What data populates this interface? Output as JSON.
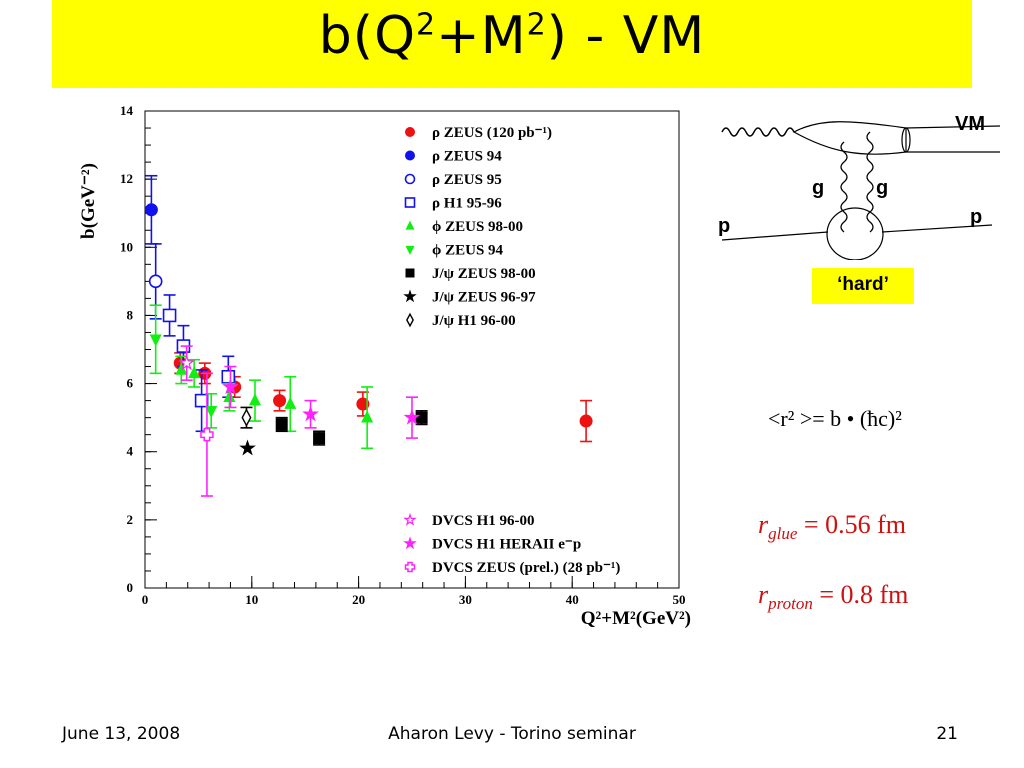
{
  "slide": {
    "title_main": "b(Q",
    "title_sup1": "2",
    "title_plus": "+M",
    "title_sup2": "2",
    "title_end": ") - VM",
    "hard_label": "‘hard’",
    "formula_r2": "<r² >= b • (ħc)²",
    "r_glue_sym": "r",
    "r_glue_sub": "glue",
    "r_glue_val": " = 0.56 fm",
    "r_proton_sym": "r",
    "r_proton_sub": "proton",
    "r_proton_val": " = 0.8 fm",
    "footer_date": "June 13, 2008",
    "footer_center": "Aharon Levy - Torino seminar",
    "footer_page": "21"
  },
  "diagram": {
    "vm_label": "VM",
    "g_label_left": "g",
    "g_label_right": "g",
    "p_label_left": "p",
    "p_label_right": "p"
  },
  "colors": {
    "red": "#ee1111",
    "blue": "#1111ee",
    "green": "#11ee11",
    "black": "#000000",
    "magenta": "#ff22ff",
    "yellow": "#ffff00"
  },
  "chart_data": {
    "type": "scatter",
    "xlabel": "Q²+M²(GeV²)",
    "ylabel": "b(GeV⁻²)",
    "xlim": [
      0,
      50
    ],
    "ylim": [
      0,
      14
    ],
    "xticks": [
      0,
      10,
      20,
      30,
      40,
      50
    ],
    "yticks": [
      0,
      2,
      4,
      6,
      8,
      10,
      12,
      14
    ],
    "series": [
      {
        "name": "ρ ZEUS (120 pb⁻¹)",
        "marker": "circle-filled",
        "color": "#ee1111",
        "points": [
          [
            3.3,
            6.6,
            0.3
          ],
          [
            5.6,
            6.3,
            0.3
          ],
          [
            8.4,
            5.9,
            0.3
          ],
          [
            12.6,
            5.5,
            0.3
          ],
          [
            20.4,
            5.4,
            0.35
          ],
          [
            41.3,
            4.9,
            0.6
          ]
        ]
      },
      {
        "name": "ρ ZEUS 94",
        "marker": "circle-filled",
        "color": "#1111ee",
        "points": [
          [
            0.6,
            11.1,
            1.0
          ]
        ]
      },
      {
        "name": "ρ ZEUS 95",
        "marker": "circle-open",
        "color": "#1111ee",
        "points": [
          [
            1.0,
            9.0,
            1.1
          ]
        ]
      },
      {
        "name": "ρ H1 95-96",
        "marker": "square-open",
        "color": "#1111ee",
        "points": [
          [
            2.3,
            8.0,
            0.6
          ],
          [
            3.6,
            7.1,
            0.6
          ],
          [
            5.3,
            5.5,
            0.9
          ],
          [
            7.8,
            6.2,
            0.6
          ]
        ]
      },
      {
        "name": "ϕ ZEUS 98-00",
        "marker": "triangle-up",
        "color": "#11ee11",
        "points": [
          [
            3.4,
            6.4,
            0.4
          ],
          [
            4.6,
            6.3,
            0.4
          ],
          [
            7.9,
            5.6,
            0.4
          ],
          [
            10.3,
            5.5,
            0.6
          ],
          [
            13.6,
            5.4,
            0.8
          ],
          [
            20.8,
            5.0,
            0.9
          ]
        ]
      },
      {
        "name": "ϕ ZEUS 94",
        "marker": "triangle-down",
        "color": "#11ee11",
        "points": [
          [
            1.0,
            7.3,
            1.0
          ],
          [
            6.2,
            5.2,
            0.5
          ]
        ]
      },
      {
        "name": "J/ψ ZEUS 98-00",
        "marker": "square-filled",
        "color": "#000000",
        "points": [
          [
            12.8,
            4.8,
            0.2
          ],
          [
            16.3,
            4.4,
            0.2
          ],
          [
            25.9,
            5.0,
            0.2
          ]
        ]
      },
      {
        "name": "J/ψ ZEUS 96-97",
        "marker": "star-filled",
        "color": "#000000",
        "points": [
          [
            9.6,
            4.1,
            0.0
          ]
        ]
      },
      {
        "name": "J/ψ H1 96-00",
        "marker": "diamond-open",
        "color": "#000000",
        "points": [
          [
            9.5,
            5.0,
            0.3
          ]
        ]
      },
      {
        "name": "DVCS H1 96-00",
        "marker": "star-open",
        "color": "#ff22ff",
        "points": [
          [
            3.9,
            6.6,
            0.5
          ]
        ]
      },
      {
        "name": "DVCS H1 HERAII e⁻p",
        "marker": "star-filled",
        "color": "#ff22ff",
        "points": [
          [
            8.0,
            5.9,
            0.6
          ],
          [
            15.5,
            5.1,
            0.4
          ],
          [
            25.0,
            5.0,
            0.6
          ]
        ]
      },
      {
        "name": "DVCS ZEUS (prel.) (28 pb⁻¹)",
        "marker": "cross-open",
        "color": "#ff22ff",
        "points": [
          [
            5.8,
            4.5,
            1.8
          ]
        ]
      }
    ],
    "legend_top": [
      0,
      1,
      2,
      3,
      4,
      5,
      6,
      7,
      8
    ],
    "legend_bottom": [
      9,
      10,
      11
    ]
  }
}
